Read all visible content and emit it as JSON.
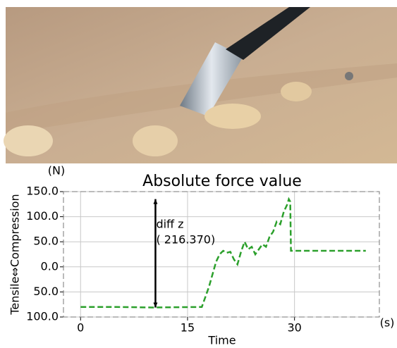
{
  "chart_data": {
    "type": "line",
    "title": "Absolute force value",
    "ylabel": "Tensile⇔Compression",
    "yunit": "(N)",
    "xlabel": "Time",
    "xunit": "(s)",
    "annotation": [
      "diff z",
      "( 216.370)"
    ],
    "x": [
      0,
      5,
      10,
      17,
      18,
      19,
      19.5,
      20,
      20.5,
      21,
      21.5,
      22,
      22.5,
      23,
      23.5,
      24,
      24.5,
      25,
      25.5,
      26,
      26.5,
      27,
      27.5,
      28,
      28.5,
      29,
      29.2,
      29.4,
      29.5,
      35,
      40
    ],
    "series": [
      {
        "color": "#2ca02c",
        "values": [
          -80,
          -80,
          -81,
          -80,
          -40,
          10,
          25,
          32,
          28,
          30,
          15,
          5,
          30,
          50,
          35,
          40,
          25,
          35,
          45,
          40,
          60,
          70,
          90,
          85,
          110,
          125,
          135,
          130,
          32,
          32,
          32
        ]
      }
    ],
    "xlim": [
      -2.4,
      41.9
    ],
    "xticks": [
      0,
      15,
      30
    ],
    "ylim": [
      -100,
      150
    ],
    "yticks": [
      {
        "value": 150,
        "label": "150.0"
      },
      {
        "value": 100,
        "label": "100.0"
      },
      {
        "value": 50,
        "label": "50.0"
      },
      {
        "value": 0,
        "label": "0.0"
      },
      {
        "value": -50,
        "label": "50.0"
      },
      {
        "value": -100,
        "label": "100.0"
      }
    ],
    "grid": true
  }
}
